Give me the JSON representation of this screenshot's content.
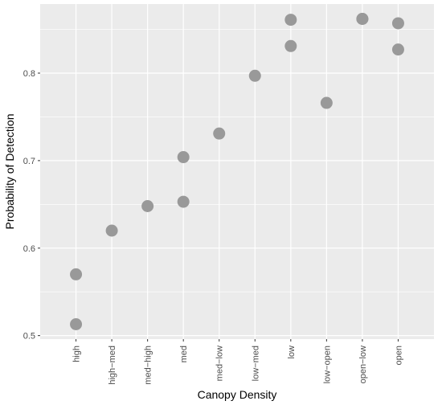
{
  "chart_data": {
    "type": "scatter",
    "title": "",
    "xlabel": "Canopy Density",
    "ylabel": "Probability of Detection",
    "categories": [
      "high",
      "high−med",
      "med−high",
      "med",
      "med−low",
      "low−med",
      "low",
      "low−open",
      "open−low",
      "open"
    ],
    "points": [
      {
        "x": "high",
        "y": 0.57
      },
      {
        "x": "high",
        "y": 0.513
      },
      {
        "x": "high−med",
        "y": 0.62
      },
      {
        "x": "med−high",
        "y": 0.648
      },
      {
        "x": "med",
        "y": 0.704
      },
      {
        "x": "med",
        "y": 0.653
      },
      {
        "x": "med−low",
        "y": 0.731
      },
      {
        "x": "low−med",
        "y": 0.797
      },
      {
        "x": "low",
        "y": 0.861
      },
      {
        "x": "low",
        "y": 0.831
      },
      {
        "x": "low−open",
        "y": 0.766
      },
      {
        "x": "open−low",
        "y": 0.862
      },
      {
        "x": "open−low",
        "y": 0.862
      },
      {
        "x": "open",
        "y": 0.857
      },
      {
        "x": "open",
        "y": 0.827
      }
    ],
    "yticks": [
      0.5,
      0.6,
      0.7,
      0.8
    ],
    "ylim": [
      0.496,
      0.879
    ],
    "grid": true,
    "colors": {
      "panel_background": "#ebebeb",
      "grid_major": "#ffffff",
      "point": "#999999"
    }
  }
}
